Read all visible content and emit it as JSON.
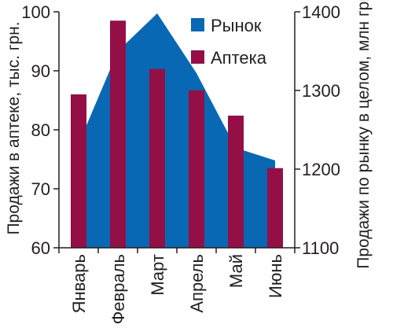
{
  "chart_data": {
    "type": "bar",
    "categories": [
      "Январь",
      "Февраль",
      "Март",
      "Апрель",
      "Май",
      "Июнь"
    ],
    "series": [
      {
        "name": "Рынок",
        "type": "area",
        "axis": "right",
        "values": [
          1232,
          1350,
          1398,
          1322,
          1227,
          1211
        ],
        "color": "#0868b4"
      },
      {
        "name": "Аптека",
        "type": "bar",
        "axis": "left",
        "values": [
          86,
          98.5,
          90.3,
          86.7,
          82.4,
          73.5
        ],
        "color": "#930f46"
      }
    ],
    "y_left": {
      "label": "Продажи в аптеке, тыс. грн.",
      "ylim": [
        60,
        100
      ],
      "ticks": [
        "60",
        "70",
        "80",
        "90",
        "100"
      ]
    },
    "y_right": {
      "label": "Продажи по рынку в целом, млн грн.",
      "ylim": [
        1100,
        1400
      ],
      "ticks": [
        "1100",
        "1200",
        "1300",
        "1400"
      ]
    },
    "legend_position": "top-right",
    "grid": false
  }
}
